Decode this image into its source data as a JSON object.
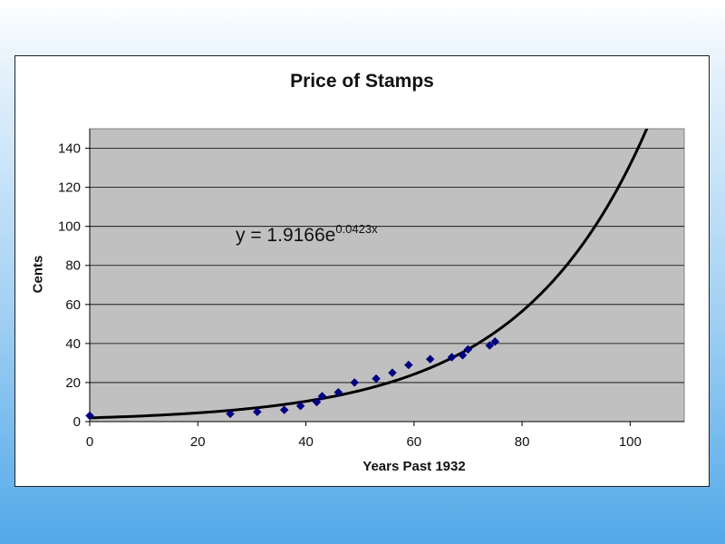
{
  "chart_data": {
    "type": "scatter",
    "title": "Price of Stamps",
    "xlabel": "Years Past 1932",
    "ylabel": "Cents",
    "xlim": [
      0,
      110
    ],
    "ylim": [
      0,
      150
    ],
    "x_ticks": [
      0,
      20,
      40,
      60,
      80,
      100
    ],
    "y_ticks": [
      0,
      20,
      40,
      60,
      80,
      100,
      120,
      140
    ],
    "grid": "horizontal",
    "plot_background": "#c0c0c0",
    "marker": "diamond",
    "marker_color": "#000080",
    "points": [
      {
        "x": 0,
        "y": 3
      },
      {
        "x": 26,
        "y": 4
      },
      {
        "x": 31,
        "y": 5
      },
      {
        "x": 36,
        "y": 6
      },
      {
        "x": 39,
        "y": 8
      },
      {
        "x": 42,
        "y": 10
      },
      {
        "x": 43,
        "y": 13
      },
      {
        "x": 46,
        "y": 15
      },
      {
        "x": 49,
        "y": 20
      },
      {
        "x": 53,
        "y": 22
      },
      {
        "x": 56,
        "y": 25
      },
      {
        "x": 59,
        "y": 29
      },
      {
        "x": 63,
        "y": 32
      },
      {
        "x": 67,
        "y": 33
      },
      {
        "x": 69,
        "y": 34
      },
      {
        "x": 70,
        "y": 37
      },
      {
        "x": 74,
        "y": 39
      },
      {
        "x": 75,
        "y": 41
      }
    ],
    "trendline": {
      "type": "exponential",
      "a": 1.9166,
      "b": 0.0423,
      "equation_base": "y = 1.9166e",
      "equation_exponent": "0.0423x"
    }
  }
}
